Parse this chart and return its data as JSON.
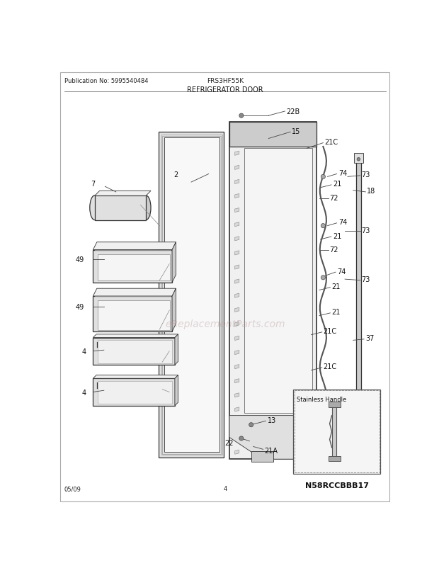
{
  "title": "REFRIGERATOR DOOR",
  "pub_no": "Publication No: 5995540484",
  "model": "FRS3HF55K",
  "date": "05/09",
  "page": "4",
  "bg_color": "#ffffff",
  "watermark_text": "eReplacementParts.com",
  "watermark_color": "#bb9999",
  "watermark_alpha": 0.4,
  "inset_title": "Stainless Handle",
  "inset_code": "N58RCCBBB17"
}
